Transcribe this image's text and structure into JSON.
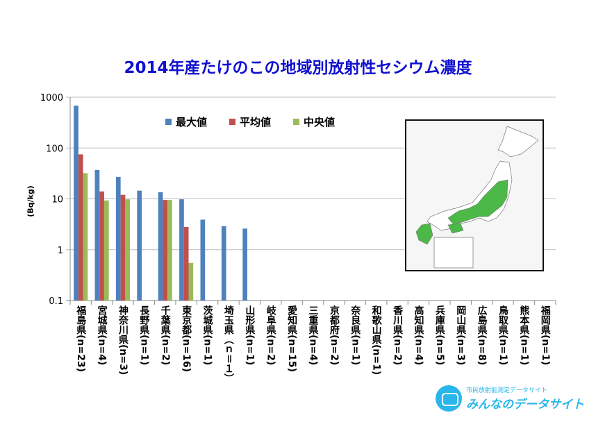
{
  "chart_data": {
    "type": "bar",
    "title": "2014年産たけのこの地域別放射性セシウム濃度",
    "ylabel": "(Bq/kg)",
    "xlabel": "",
    "yscale": "log",
    "ylim": [
      0.1,
      1000
    ],
    "yticks": [
      "0.1",
      "1",
      "10",
      "100",
      "1000"
    ],
    "grid": true,
    "legend_position": "top-center",
    "categories": [
      "福島県(n=23)",
      "宮城県(n=4)",
      "神奈川県(n=3)",
      "長野県(n=1)",
      "千葉県(n=2)",
      "東京都(n=16)",
      "茨城県(n=1)",
      "埼玉県（ｎ＝１）",
      "山形県(n=1)",
      "岐阜県(n=2)",
      "愛知県(n=15)",
      "三重県(n=4)",
      "京都府(n=2)",
      "奈良県(n=1)",
      "和歌山県(n=1)",
      "香川県(n=2)",
      "高知県(n=4)",
      "兵庫県(n=5)",
      "岡山県(n=3)",
      "広島県(n=8)",
      "鳥取県(n=1)",
      "熊本県(n=1)",
      "福岡県(n=1)"
    ],
    "series": [
      {
        "name": "最大値",
        "color": "#4f81bd",
        "values": [
          680,
          37,
          27,
          14.5,
          13.5,
          9.8,
          3.9,
          2.9,
          2.6,
          null,
          null,
          null,
          null,
          null,
          null,
          null,
          null,
          null,
          null,
          null,
          null,
          null,
          null
        ]
      },
      {
        "name": "平均値",
        "color": "#c0504d",
        "values": [
          75,
          14,
          12,
          null,
          9.5,
          2.8,
          null,
          null,
          null,
          null,
          null,
          null,
          null,
          null,
          null,
          null,
          null,
          null,
          null,
          null,
          null,
          null,
          null
        ]
      },
      {
        "name": "中央値",
        "color": "#9bbb59",
        "values": [
          32,
          9.3,
          9.8,
          null,
          9.5,
          0.55,
          null,
          null,
          null,
          null,
          null,
          null,
          null,
          null,
          null,
          null,
          null,
          null,
          null,
          null,
          null,
          null,
          null
        ]
      }
    ]
  },
  "logo": {
    "line1": "市民放射能測定データサイト",
    "line2": "みんなのデータサイト"
  }
}
